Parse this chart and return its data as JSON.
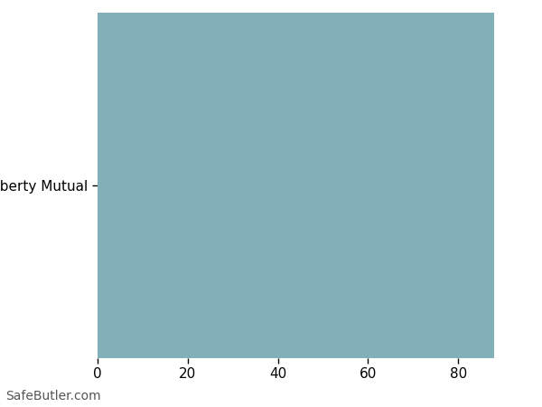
{
  "categories": [
    "Liberty Mutual"
  ],
  "values": [
    88
  ],
  "bar_color": "#82b0b8",
  "xlim": [
    0,
    95
  ],
  "xticks": [
    0,
    20,
    40,
    60,
    80
  ],
  "background_color": "#ffffff",
  "grid_color": "#e0e8ea",
  "watermark": "SafeButler.com",
  "watermark_color": "#555555",
  "bar_height": 0.95,
  "tick_label_fontsize": 11,
  "ytick_fontsize": 11,
  "watermark_fontsize": 10
}
